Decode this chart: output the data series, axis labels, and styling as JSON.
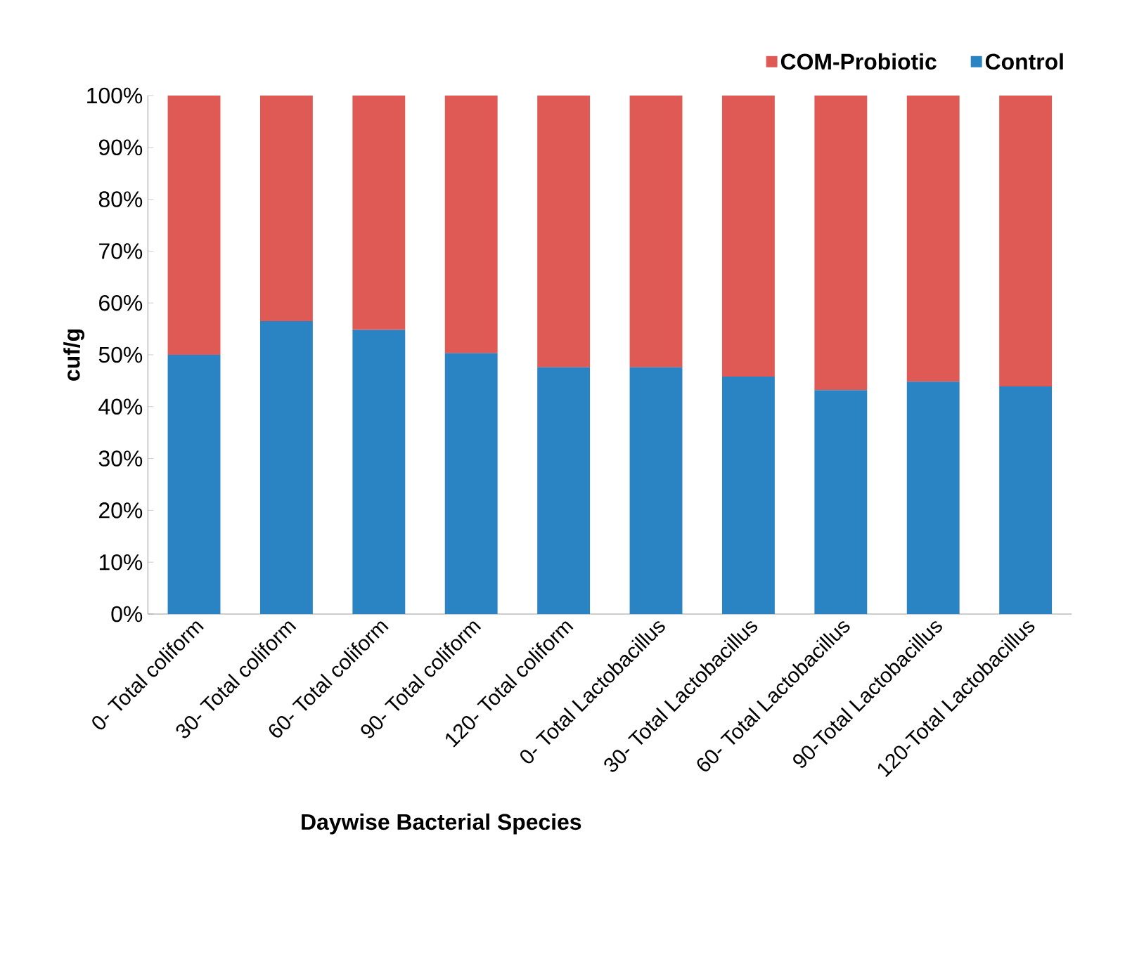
{
  "chart_data": {
    "type": "bar",
    "stacked": true,
    "xlabel": "Daywise Bacterial Species",
    "ylabel": "cuf/g",
    "categories": [
      "0- Total coliform",
      "30- Total coliform",
      "60- Total coliform",
      "90- Total coliform",
      "120- Total coliform",
      "0- Total Lactobacillus",
      "30- Total Lactobacillus",
      "60- Total Lactobacillus",
      "90-Total Lactobacillus",
      "120-Total Lactobacillus"
    ],
    "series": [
      {
        "name": "Control",
        "color": "#2a84c4",
        "values": [
          50.0,
          56.5,
          54.8,
          50.3,
          47.6,
          47.6,
          45.8,
          43.2,
          44.8,
          43.9
        ]
      },
      {
        "name": "COM-Probiotic",
        "color": "#e05a55",
        "values": [
          50.0,
          43.5,
          45.2,
          49.7,
          52.4,
          52.4,
          54.2,
          56.8,
          55.2,
          56.1
        ]
      }
    ],
    "ylim": [
      0,
      100
    ],
    "yticks": [
      {
        "value": 0,
        "label": "0%"
      },
      {
        "value": 10,
        "label": "10%"
      },
      {
        "value": 20,
        "label": "20%"
      },
      {
        "value": 30,
        "label": "30%"
      },
      {
        "value": 40,
        "label": "40%"
      },
      {
        "value": 50,
        "label": "50%"
      },
      {
        "value": 60,
        "label": "60%"
      },
      {
        "value": 70,
        "label": "70%"
      },
      {
        "value": 80,
        "label": "80%"
      },
      {
        "value": 90,
        "label": "90%"
      },
      {
        "value": 100,
        "label": "100%"
      }
    ],
    "legend": "top right"
  }
}
